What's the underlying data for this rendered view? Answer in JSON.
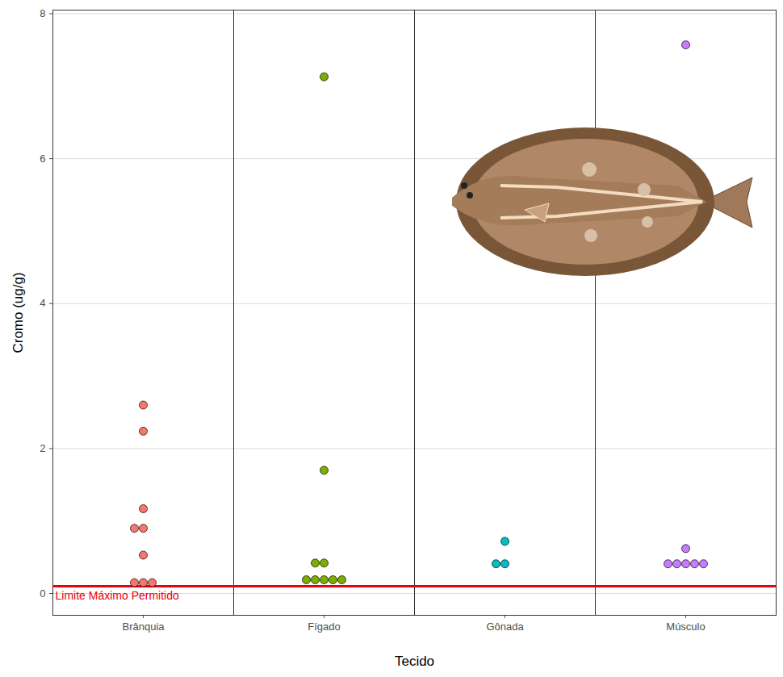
{
  "chart_data": {
    "type": "scatter",
    "x_label": "Tecido",
    "y_label": "Cromo (ug/g)",
    "categories": [
      "Brânquia",
      "Fígado",
      "Gônada",
      "Músculo"
    ],
    "values": [
      [
        2.6,
        2.24,
        1.17,
        0.9,
        0.9,
        0.53,
        0.15,
        0.15,
        0.15
      ],
      [
        7.13,
        1.7,
        0.42,
        0.42,
        0.19,
        0.19,
        0.19,
        0.19,
        0.19
      ],
      [
        0.72,
        0.41,
        0.41
      ],
      [
        7.57,
        0.62,
        0.41,
        0.41,
        0.41,
        0.41,
        0.41
      ]
    ],
    "colors": [
      "#F8766D",
      "#7CAE00",
      "#00BFC4",
      "#C77CFF"
    ],
    "marker": "circle",
    "reference_line": {
      "value": 0.1,
      "label": "Limite Máximo Permitido",
      "color": "#e8000b"
    },
    "ylim": [
      -0.3,
      8.05
    ],
    "yticks": [
      0,
      2,
      4,
      6,
      8
    ],
    "grid": true
  }
}
